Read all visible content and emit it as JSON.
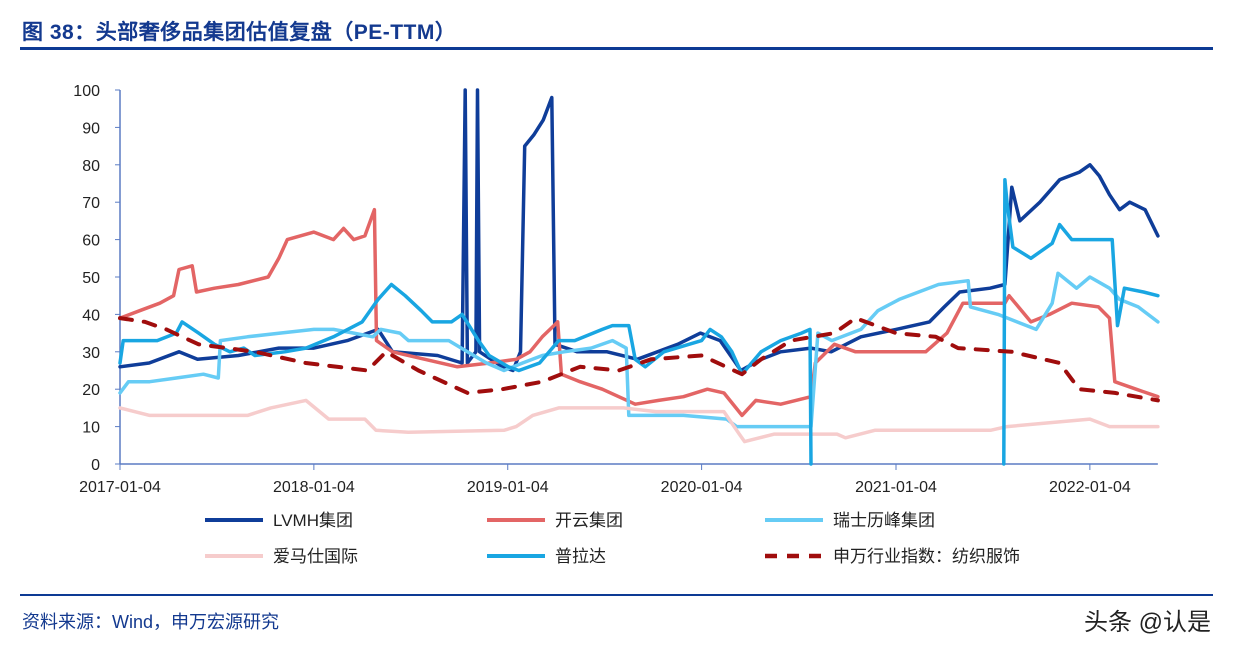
{
  "title": "图 38：头部奢侈品集团估值复盘（PE-TTM）",
  "source": "资料来源：Wind，申万宏源研究",
  "watermark": "头条 @认是",
  "chart_data": {
    "type": "line",
    "title": "",
    "xlabel": "",
    "ylabel": "",
    "ylim": [
      0,
      100
    ],
    "yticks": [
      0,
      10,
      20,
      30,
      40,
      50,
      60,
      70,
      80,
      90,
      100
    ],
    "xlim": [
      "2017-01-04",
      "2022-05-12"
    ],
    "xticks": [
      "2017-01-04",
      "2018-01-04",
      "2019-01-04",
      "2020-01-04",
      "2021-01-04",
      "2022-01-04"
    ],
    "grid": false,
    "legend_position": "bottom",
    "series": [
      {
        "name": "LVMH集团",
        "color": "#0f3d99",
        "dash": false,
        "points": [
          [
            "2017-01-04",
            26
          ],
          [
            "2017-02-28",
            27
          ],
          [
            "2017-04-25",
            30
          ],
          [
            "2017-05-30",
            28
          ],
          [
            "2017-08-15",
            29
          ],
          [
            "2017-10-30",
            31
          ],
          [
            "2018-01-04",
            31
          ],
          [
            "2018-03-08",
            33
          ],
          [
            "2018-05-05",
            36
          ],
          [
            "2018-06-01",
            30
          ],
          [
            "2018-08-25",
            29
          ],
          [
            "2018-10-10",
            27
          ],
          [
            "2018-10-16",
            100
          ],
          [
            "2018-10-20",
            27
          ],
          [
            "2018-11-05",
            30
          ],
          [
            "2018-11-08",
            100
          ],
          [
            "2018-11-12",
            30
          ],
          [
            "2018-12-25",
            26
          ],
          [
            "2019-01-14",
            25
          ],
          [
            "2019-01-28",
            30
          ],
          [
            "2019-02-05",
            85
          ],
          [
            "2019-02-22",
            88
          ],
          [
            "2019-03-12",
            92
          ],
          [
            "2019-03-28",
            98
          ],
          [
            "2019-04-03",
            32
          ],
          [
            "2019-05-15",
            30
          ],
          [
            "2019-07-10",
            30
          ],
          [
            "2019-09-05",
            28
          ],
          [
            "2019-11-20",
            32
          ],
          [
            "2020-01-02",
            35
          ],
          [
            "2020-02-08",
            33
          ],
          [
            "2020-03-18",
            25
          ],
          [
            "2020-04-25",
            28
          ],
          [
            "2020-06-01",
            30
          ],
          [
            "2020-07-28",
            31
          ],
          [
            "2020-09-04",
            30
          ],
          [
            "2020-10-30",
            34
          ],
          [
            "2021-01-04",
            36
          ],
          [
            "2021-03-08",
            38
          ],
          [
            "2021-04-05",
            42
          ],
          [
            "2021-05-04",
            46
          ],
          [
            "2021-06-30",
            47
          ],
          [
            "2021-07-28",
            48
          ],
          [
            "2021-08-10",
            74
          ],
          [
            "2021-08-25",
            65
          ],
          [
            "2021-10-02",
            70
          ],
          [
            "2021-11-08",
            76
          ],
          [
            "2021-12-15",
            78
          ],
          [
            "2022-01-04",
            80
          ],
          [
            "2022-01-22",
            77
          ],
          [
            "2022-02-10",
            72
          ],
          [
            "2022-03-01",
            68
          ],
          [
            "2022-03-20",
            70
          ],
          [
            "2022-04-18",
            68
          ],
          [
            "2022-05-12",
            61
          ]
        ]
      },
      {
        "name": "开云集团",
        "color": "#e36565",
        "dash": false,
        "points": [
          [
            "2017-01-04",
            39
          ],
          [
            "2017-02-10",
            41
          ],
          [
            "2017-03-20",
            43
          ],
          [
            "2017-04-15",
            45
          ],
          [
            "2017-04-25",
            52
          ],
          [
            "2017-05-20",
            53
          ],
          [
            "2017-05-28",
            46
          ],
          [
            "2017-07-01",
            47
          ],
          [
            "2017-08-15",
            48
          ],
          [
            "2017-10-10",
            50
          ],
          [
            "2017-10-30",
            55
          ],
          [
            "2017-11-15",
            60
          ],
          [
            "2018-01-04",
            62
          ],
          [
            "2018-02-10",
            60
          ],
          [
            "2018-03-01",
            63
          ],
          [
            "2018-03-20",
            60
          ],
          [
            "2018-04-10",
            61
          ],
          [
            "2018-04-28",
            68
          ],
          [
            "2018-05-02",
            33
          ],
          [
            "2018-06-01",
            30
          ],
          [
            "2018-08-01",
            28
          ],
          [
            "2018-10-01",
            26
          ],
          [
            "2018-12-01",
            27
          ],
          [
            "2019-01-20",
            28
          ],
          [
            "2019-02-15",
            30
          ],
          [
            "2019-03-10",
            34
          ],
          [
            "2019-04-01",
            37
          ],
          [
            "2019-04-08",
            38
          ],
          [
            "2019-04-15",
            24
          ],
          [
            "2019-05-20",
            22
          ],
          [
            "2019-07-01",
            20
          ],
          [
            "2019-09-01",
            16
          ],
          [
            "2019-10-15",
            17
          ],
          [
            "2019-12-01",
            18
          ],
          [
            "2020-01-15",
            20
          ],
          [
            "2020-02-15",
            19
          ],
          [
            "2020-03-20",
            13
          ],
          [
            "2020-04-15",
            17
          ],
          [
            "2020-06-01",
            16
          ],
          [
            "2020-07-28",
            18
          ],
          [
            "2020-08-05",
            27
          ],
          [
            "2020-09-10",
            32
          ],
          [
            "2020-10-20",
            30
          ],
          [
            "2020-12-01",
            30
          ],
          [
            "2021-03-01",
            30
          ],
          [
            "2021-04-10",
            35
          ],
          [
            "2021-05-10",
            43
          ],
          [
            "2021-07-28",
            43
          ],
          [
            "2021-08-05",
            45
          ],
          [
            "2021-09-15",
            38
          ],
          [
            "2021-10-20",
            40
          ],
          [
            "2021-12-01",
            43
          ],
          [
            "2022-01-20",
            42
          ],
          [
            "2022-02-10",
            39
          ],
          [
            "2022-02-20",
            22
          ],
          [
            "2022-04-01",
            20
          ],
          [
            "2022-05-12",
            18
          ]
        ]
      },
      {
        "name": "瑞士历峰集团",
        "color": "#66ccf5",
        "dash": false,
        "points": [
          [
            "2017-01-04",
            19
          ],
          [
            "2017-01-20",
            22
          ],
          [
            "2017-03-01",
            22
          ],
          [
            "2017-04-20",
            23
          ],
          [
            "2017-06-10",
            24
          ],
          [
            "2017-07-08",
            23
          ],
          [
            "2017-07-12",
            33
          ],
          [
            "2017-09-01",
            34
          ],
          [
            "2017-11-01",
            35
          ],
          [
            "2018-01-04",
            36
          ],
          [
            "2018-02-10",
            36
          ],
          [
            "2018-03-20",
            35
          ],
          [
            "2018-04-25",
            34
          ],
          [
            "2018-05-10",
            36
          ],
          [
            "2018-06-15",
            35
          ],
          [
            "2018-07-01",
            33
          ],
          [
            "2018-09-15",
            33
          ],
          [
            "2018-10-20",
            30
          ],
          [
            "2018-11-25",
            27
          ],
          [
            "2018-12-28",
            25
          ],
          [
            "2019-02-01",
            27
          ],
          [
            "2019-03-10",
            29
          ],
          [
            "2019-04-20",
            30
          ],
          [
            "2019-06-10",
            31
          ],
          [
            "2019-07-20",
            33
          ],
          [
            "2019-08-15",
            31
          ],
          [
            "2019-08-20",
            13
          ],
          [
            "2019-12-01",
            13
          ],
          [
            "2020-02-20",
            12
          ],
          [
            "2020-03-10",
            10
          ],
          [
            "2020-07-28",
            10
          ],
          [
            "2020-08-10",
            35
          ],
          [
            "2020-09-05",
            33
          ],
          [
            "2020-10-30",
            36
          ],
          [
            "2020-12-01",
            41
          ],
          [
            "2021-01-10",
            44
          ],
          [
            "2021-03-25",
            48
          ],
          [
            "2021-05-20",
            49
          ],
          [
            "2021-05-24",
            42
          ],
          [
            "2021-07-15",
            40
          ],
          [
            "2021-09-25",
            36
          ],
          [
            "2021-10-25",
            43
          ],
          [
            "2021-11-05",
            51
          ],
          [
            "2021-12-10",
            47
          ],
          [
            "2022-01-04",
            50
          ],
          [
            "2022-02-10",
            47
          ],
          [
            "2022-03-01",
            44
          ],
          [
            "2022-04-05",
            42
          ],
          [
            "2022-05-12",
            38
          ]
        ]
      },
      {
        "name": "爱马仕国际",
        "color": "#f6cccc",
        "dash": false,
        "points": [
          [
            "2017-01-04",
            15
          ],
          [
            "2017-03-01",
            13
          ],
          [
            "2017-09-01",
            13
          ],
          [
            "2017-10-15",
            15
          ],
          [
            "2017-12-20",
            17
          ],
          [
            "2018-02-01",
            12
          ],
          [
            "2018-04-10",
            12
          ],
          [
            "2018-05-01",
            9
          ],
          [
            "2018-07-01",
            8.5
          ],
          [
            "2018-12-28",
            9
          ],
          [
            "2019-01-20",
            10
          ],
          [
            "2019-02-20",
            13
          ],
          [
            "2019-04-10",
            15
          ],
          [
            "2019-08-10",
            15
          ],
          [
            "2019-10-10",
            14
          ],
          [
            "2020-02-15",
            14
          ],
          [
            "2020-03-15",
            8
          ],
          [
            "2020-03-25",
            6
          ],
          [
            "2020-05-20",
            8
          ],
          [
            "2020-09-15",
            8
          ],
          [
            "2020-10-01",
            7
          ],
          [
            "2020-11-25",
            9
          ],
          [
            "2021-07-01",
            9
          ],
          [
            "2021-08-01",
            10
          ],
          [
            "2022-01-04",
            12
          ],
          [
            "2022-02-10",
            10
          ],
          [
            "2022-05-12",
            10
          ]
        ]
      },
      {
        "name": "普拉达",
        "color": "#19a6e2",
        "dash": false,
        "points": [
          [
            "2017-01-04",
            27
          ],
          [
            "2017-01-10",
            33
          ],
          [
            "2017-03-15",
            33
          ],
          [
            "2017-04-20",
            35
          ],
          [
            "2017-05-01",
            38
          ],
          [
            "2017-06-01",
            35
          ],
          [
            "2017-07-01",
            32
          ],
          [
            "2017-07-30",
            30
          ],
          [
            "2017-08-25",
            31
          ],
          [
            "2017-09-15",
            29
          ],
          [
            "2017-11-10",
            30
          ],
          [
            "2017-12-20",
            31
          ],
          [
            "2018-02-10",
            34
          ],
          [
            "2018-04-05",
            38
          ],
          [
            "2018-05-05",
            44
          ],
          [
            "2018-05-30",
            48
          ],
          [
            "2018-06-25",
            45
          ],
          [
            "2018-07-25",
            41
          ],
          [
            "2018-08-15",
            38
          ],
          [
            "2018-09-20",
            38
          ],
          [
            "2018-10-10",
            40
          ],
          [
            "2018-11-10",
            33
          ],
          [
            "2018-11-30",
            29
          ],
          [
            "2019-01-05",
            26
          ],
          [
            "2019-01-25",
            25
          ],
          [
            "2019-03-05",
            27
          ],
          [
            "2019-04-10",
            33
          ],
          [
            "2019-05-10",
            33
          ],
          [
            "2019-07-01",
            36
          ],
          [
            "2019-07-20",
            37
          ],
          [
            "2019-08-20",
            37
          ],
          [
            "2019-09-01",
            28
          ],
          [
            "2019-09-20",
            26
          ],
          [
            "2019-10-25",
            30
          ],
          [
            "2020-01-04",
            33
          ],
          [
            "2020-01-20",
            36
          ],
          [
            "2020-02-10",
            34
          ],
          [
            "2020-03-01",
            30
          ],
          [
            "2020-03-20",
            24
          ],
          [
            "2020-04-25",
            30
          ],
          [
            "2020-06-01",
            33
          ],
          [
            "2020-07-10",
            35
          ],
          [
            "2020-07-26",
            36
          ],
          [
            "2020-07-28",
            0
          ],
          [
            "2020-08-01",
            null
          ],
          [
            "2021-07-26",
            0
          ],
          [
            "2021-07-28",
            76
          ],
          [
            "2021-08-01",
            70
          ],
          [
            "2021-08-12",
            58
          ],
          [
            "2021-09-15",
            55
          ],
          [
            "2021-10-25",
            59
          ],
          [
            "2021-11-08",
            64
          ],
          [
            "2021-12-01",
            60
          ],
          [
            "2022-01-04",
            60
          ],
          [
            "2022-02-15",
            60
          ],
          [
            "2022-02-25",
            37
          ],
          [
            "2022-03-10",
            47
          ],
          [
            "2022-04-15",
            46
          ],
          [
            "2022-05-12",
            45
          ]
        ]
      },
      {
        "name": "申万行业指数：纺织服饰",
        "color": "#a00d0d",
        "dash": true,
        "points": [
          [
            "2017-01-04",
            39
          ],
          [
            "2017-02-20",
            38
          ],
          [
            "2017-04-01",
            36
          ],
          [
            "2017-06-01",
            32
          ],
          [
            "2017-09-15",
            30
          ],
          [
            "2017-12-20",
            27
          ],
          [
            "2018-04-15",
            25
          ],
          [
            "2018-05-20",
            30
          ],
          [
            "2018-07-20",
            25
          ],
          [
            "2018-10-20",
            19
          ],
          [
            "2018-12-25",
            20
          ],
          [
            "2019-03-10",
            22
          ],
          [
            "2019-05-20",
            26
          ],
          [
            "2019-08-01",
            25
          ],
          [
            "2019-10-01",
            28
          ],
          [
            "2020-01-04",
            29
          ],
          [
            "2020-03-20",
            24
          ],
          [
            "2020-04-25",
            28
          ],
          [
            "2020-06-20",
            33
          ],
          [
            "2020-09-10",
            35
          ],
          [
            "2020-10-20",
            39
          ],
          [
            "2021-01-04",
            35
          ],
          [
            "2021-03-20",
            34
          ],
          [
            "2021-05-01",
            31
          ],
          [
            "2021-08-10",
            30
          ],
          [
            "2021-11-08",
            27
          ],
          [
            "2021-12-15",
            20
          ],
          [
            "2022-02-20",
            19
          ],
          [
            "2022-05-12",
            17
          ]
        ]
      }
    ]
  }
}
